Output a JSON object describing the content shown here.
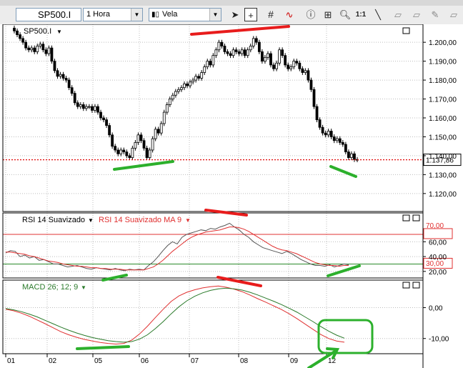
{
  "toolbar": {
    "symbol": "SP500.I",
    "timeframe": "1 Hora",
    "chart_style": "Vela",
    "zoom_label": "1:1"
  },
  "price_panel": {
    "label": "SP500.I",
    "last_price_tag": "1.137,86"
  },
  "rsi_panel": {
    "label_rsi": "RSI 14 Suavizado",
    "label_ma": "RSI 14 Suavizado MA 9",
    "level_high": "70,00",
    "level_low": "30,00"
  },
  "macd_panel": {
    "label": "MACD 26; 12; 9"
  },
  "colors": {
    "up": "#ffffff",
    "down": "#000000",
    "rsi_line": "#555555",
    "rsi_ma": "#e03030",
    "level_high_line": "#e03030",
    "level_low_line": "#2a8a2a",
    "macd_line": "#e03030",
    "signal_line": "#2a7a2a",
    "annot_red": "#e81c1c",
    "annot_green": "#2cb02c"
  },
  "chart_data": [
    {
      "type": "candlestick",
      "title": "SP500.I",
      "ylim": [
        1112,
        1208
      ],
      "y_ticks": [
        "1.200,00",
        "1.190,00",
        "1.180,00",
        "1.170,00",
        "1.160,00",
        "1.150,00",
        "1.140,00",
        "1.130,00",
        "1.120,00"
      ],
      "y_tick_values": [
        1200,
        1190,
        1180,
        1170,
        1160,
        1150,
        1140,
        1130,
        1120
      ],
      "x_ticks": [
        "01",
        "02",
        "05",
        "06",
        "07",
        "08",
        "09",
        "12"
      ],
      "last_price": 1137.86,
      "closes": [
        1206,
        1204,
        1202,
        1200,
        1197,
        1196,
        1197,
        1195,
        1198,
        1199,
        1196,
        1194,
        1197,
        1190,
        1185,
        1182,
        1183,
        1181,
        1180,
        1176,
        1173,
        1168,
        1166,
        1167,
        1165,
        1166,
        1166,
        1164,
        1166,
        1163,
        1160,
        1159,
        1156,
        1151,
        1145,
        1143,
        1141,
        1143,
        1142,
        1140,
        1139,
        1144,
        1147,
        1151,
        1148,
        1144,
        1139,
        1143,
        1149,
        1154,
        1152,
        1157,
        1163,
        1167,
        1170,
        1172,
        1174,
        1175,
        1176,
        1178,
        1177,
        1179,
        1180,
        1182,
        1181,
        1184,
        1187,
        1190,
        1188,
        1193,
        1196,
        1200,
        1198,
        1195,
        1194,
        1193,
        1196,
        1195,
        1194,
        1196,
        1193,
        1196,
        1198,
        1202,
        1200,
        1195,
        1190,
        1192,
        1194,
        1188,
        1186,
        1189,
        1196,
        1193,
        1188,
        1186,
        1187,
        1190,
        1189,
        1186,
        1184,
        1185,
        1180,
        1175,
        1166,
        1159,
        1155,
        1152,
        1151,
        1153,
        1150,
        1148,
        1149,
        1147,
        1146,
        1142,
        1139,
        1141,
        1138,
        1137.86
      ]
    },
    {
      "type": "line",
      "title": "RSI 14 Suavizado",
      "ylim": [
        15,
        95
      ],
      "y_ticks": [
        "60,00",
        "40,00",
        "20,00"
      ],
      "y_tick_values": [
        60,
        40,
        20
      ],
      "levels": [
        70,
        30
      ],
      "series": [
        {
          "name": "RSI 14 Suavizado",
          "values": [
            45,
            48,
            47,
            40,
            42,
            38,
            40,
            35,
            36,
            33,
            30,
            30,
            28,
            26,
            27,
            28,
            26,
            24,
            23,
            25,
            24,
            23,
            22,
            24,
            22,
            21,
            23,
            22,
            23,
            22,
            28,
            33,
            40,
            48,
            55,
            60,
            57,
            66,
            70,
            72,
            74,
            76,
            75,
            78,
            77,
            80,
            82,
            85,
            80,
            76,
            70,
            66,
            60,
            56,
            52,
            50,
            48,
            46,
            44,
            47,
            44,
            40,
            36,
            33,
            30,
            28,
            28,
            27,
            29,
            26,
            28,
            30,
            29
          ]
        },
        {
          "name": "RSI 14 Suavizado MA 9",
          "values": [
            46,
            46,
            45,
            44,
            43,
            41,
            40,
            38,
            36,
            34,
            33,
            32,
            30,
            29,
            28,
            27,
            27,
            26,
            25,
            25,
            24,
            24,
            23,
            23,
            23,
            22,
            22,
            22,
            22,
            22,
            24,
            26,
            30,
            35,
            41,
            47,
            52,
            57,
            62,
            66,
            69,
            71,
            73,
            74,
            75,
            76,
            78,
            80,
            80,
            79,
            77,
            74,
            70,
            66,
            62,
            58,
            54,
            51,
            49,
            48,
            46,
            44,
            41,
            38,
            35,
            32,
            30,
            29,
            28,
            28,
            27,
            28,
            28
          ]
        }
      ]
    },
    {
      "type": "line",
      "title": "MACD 26; 12; 9",
      "ylim": [
        -14,
        8
      ],
      "y_ticks": [
        "0,00",
        "-10,00"
      ],
      "y_tick_values": [
        0,
        -10
      ],
      "series": [
        {
          "name": "MACD 26; 12; 9",
          "values": [
            -0.5,
            -1,
            -1.8,
            -2.8,
            -4,
            -5.2,
            -6.5,
            -7.8,
            -8.8,
            -9.6,
            -10.3,
            -10.8,
            -11.3,
            -11.6,
            -11.8,
            -11.6,
            -10.5,
            -8.5,
            -6,
            -3.2,
            -0.5,
            2,
            3.8,
            5,
            5.8,
            6.4,
            6.8,
            7,
            6.6,
            6,
            5.2,
            4.1,
            2.9,
            1.8,
            0.6,
            -0.6,
            -2,
            -3.6,
            -5.3,
            -7,
            -8.7,
            -10,
            -10.8,
            -11.2
          ]
        },
        {
          "name": "Signal",
          "values": [
            -0.3,
            -0.7,
            -1.3,
            -2.1,
            -3,
            -4.1,
            -5.2,
            -6.3,
            -7.3,
            -8.2,
            -9,
            -9.7,
            -10.2,
            -10.7,
            -11,
            -11.2,
            -11,
            -10.2,
            -8.8,
            -6.8,
            -4.5,
            -2,
            0.3,
            2.2,
            3.7,
            4.8,
            5.6,
            6.1,
            6.3,
            6.1,
            5.7,
            5,
            4.1,
            3.1,
            2.1,
            1,
            -0.2,
            -1.5,
            -3,
            -4.5,
            -6.1,
            -7.6,
            -8.9,
            -9.9
          ]
        }
      ]
    }
  ]
}
